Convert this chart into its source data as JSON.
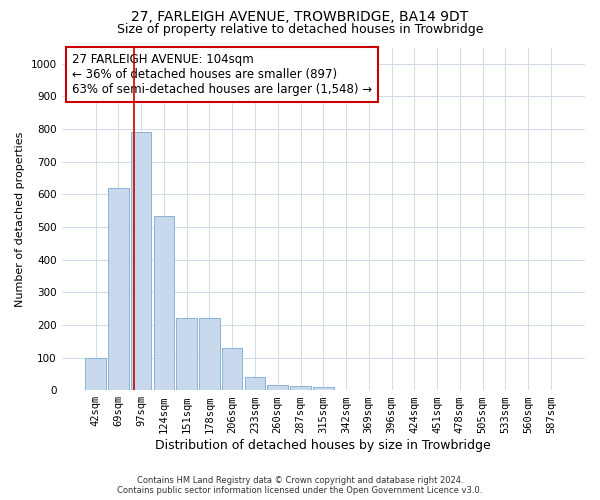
{
  "title": "27, FARLEIGH AVENUE, TROWBRIDGE, BA14 9DT",
  "subtitle": "Size of property relative to detached houses in Trowbridge",
  "xlabel": "Distribution of detached houses by size in Trowbridge",
  "ylabel": "Number of detached properties",
  "footer_line1": "Contains HM Land Registry data © Crown copyright and database right 2024.",
  "footer_line2": "Contains public sector information licensed under the Open Government Licence v3.0.",
  "bar_labels": [
    "42sqm",
    "69sqm",
    "97sqm",
    "124sqm",
    "151sqm",
    "178sqm",
    "206sqm",
    "233sqm",
    "260sqm",
    "287sqm",
    "315sqm",
    "342sqm",
    "369sqm",
    "396sqm",
    "424sqm",
    "451sqm",
    "478sqm",
    "505sqm",
    "533sqm",
    "560sqm",
    "587sqm"
  ],
  "bar_values": [
    100,
    620,
    790,
    535,
    220,
    220,
    130,
    40,
    17,
    12,
    10,
    0,
    0,
    0,
    0,
    0,
    0,
    0,
    0,
    0,
    0
  ],
  "bar_color": "#c8d9ed",
  "bar_edge_color": "#8ab4d4",
  "red_line_color": "#cc0000",
  "red_line_bar_index": 2,
  "annotation_text": "27 FARLEIGH AVENUE: 104sqm\n← 36% of detached houses are smaller (897)\n63% of semi-detached houses are larger (1,548) →",
  "annotation_box_color": "#ffffff",
  "annotation_box_edge": "#cc0000",
  "ylim": [
    0,
    1050
  ],
  "yticks": [
    0,
    100,
    200,
    300,
    400,
    500,
    600,
    700,
    800,
    900,
    1000
  ],
  "grid_color": "#d0dcea",
  "background_color": "#ffffff",
  "title_fontsize": 10,
  "subtitle_fontsize": 9,
  "xlabel_fontsize": 9,
  "ylabel_fontsize": 8,
  "tick_fontsize": 7.5,
  "annotation_fontsize": 8.5
}
